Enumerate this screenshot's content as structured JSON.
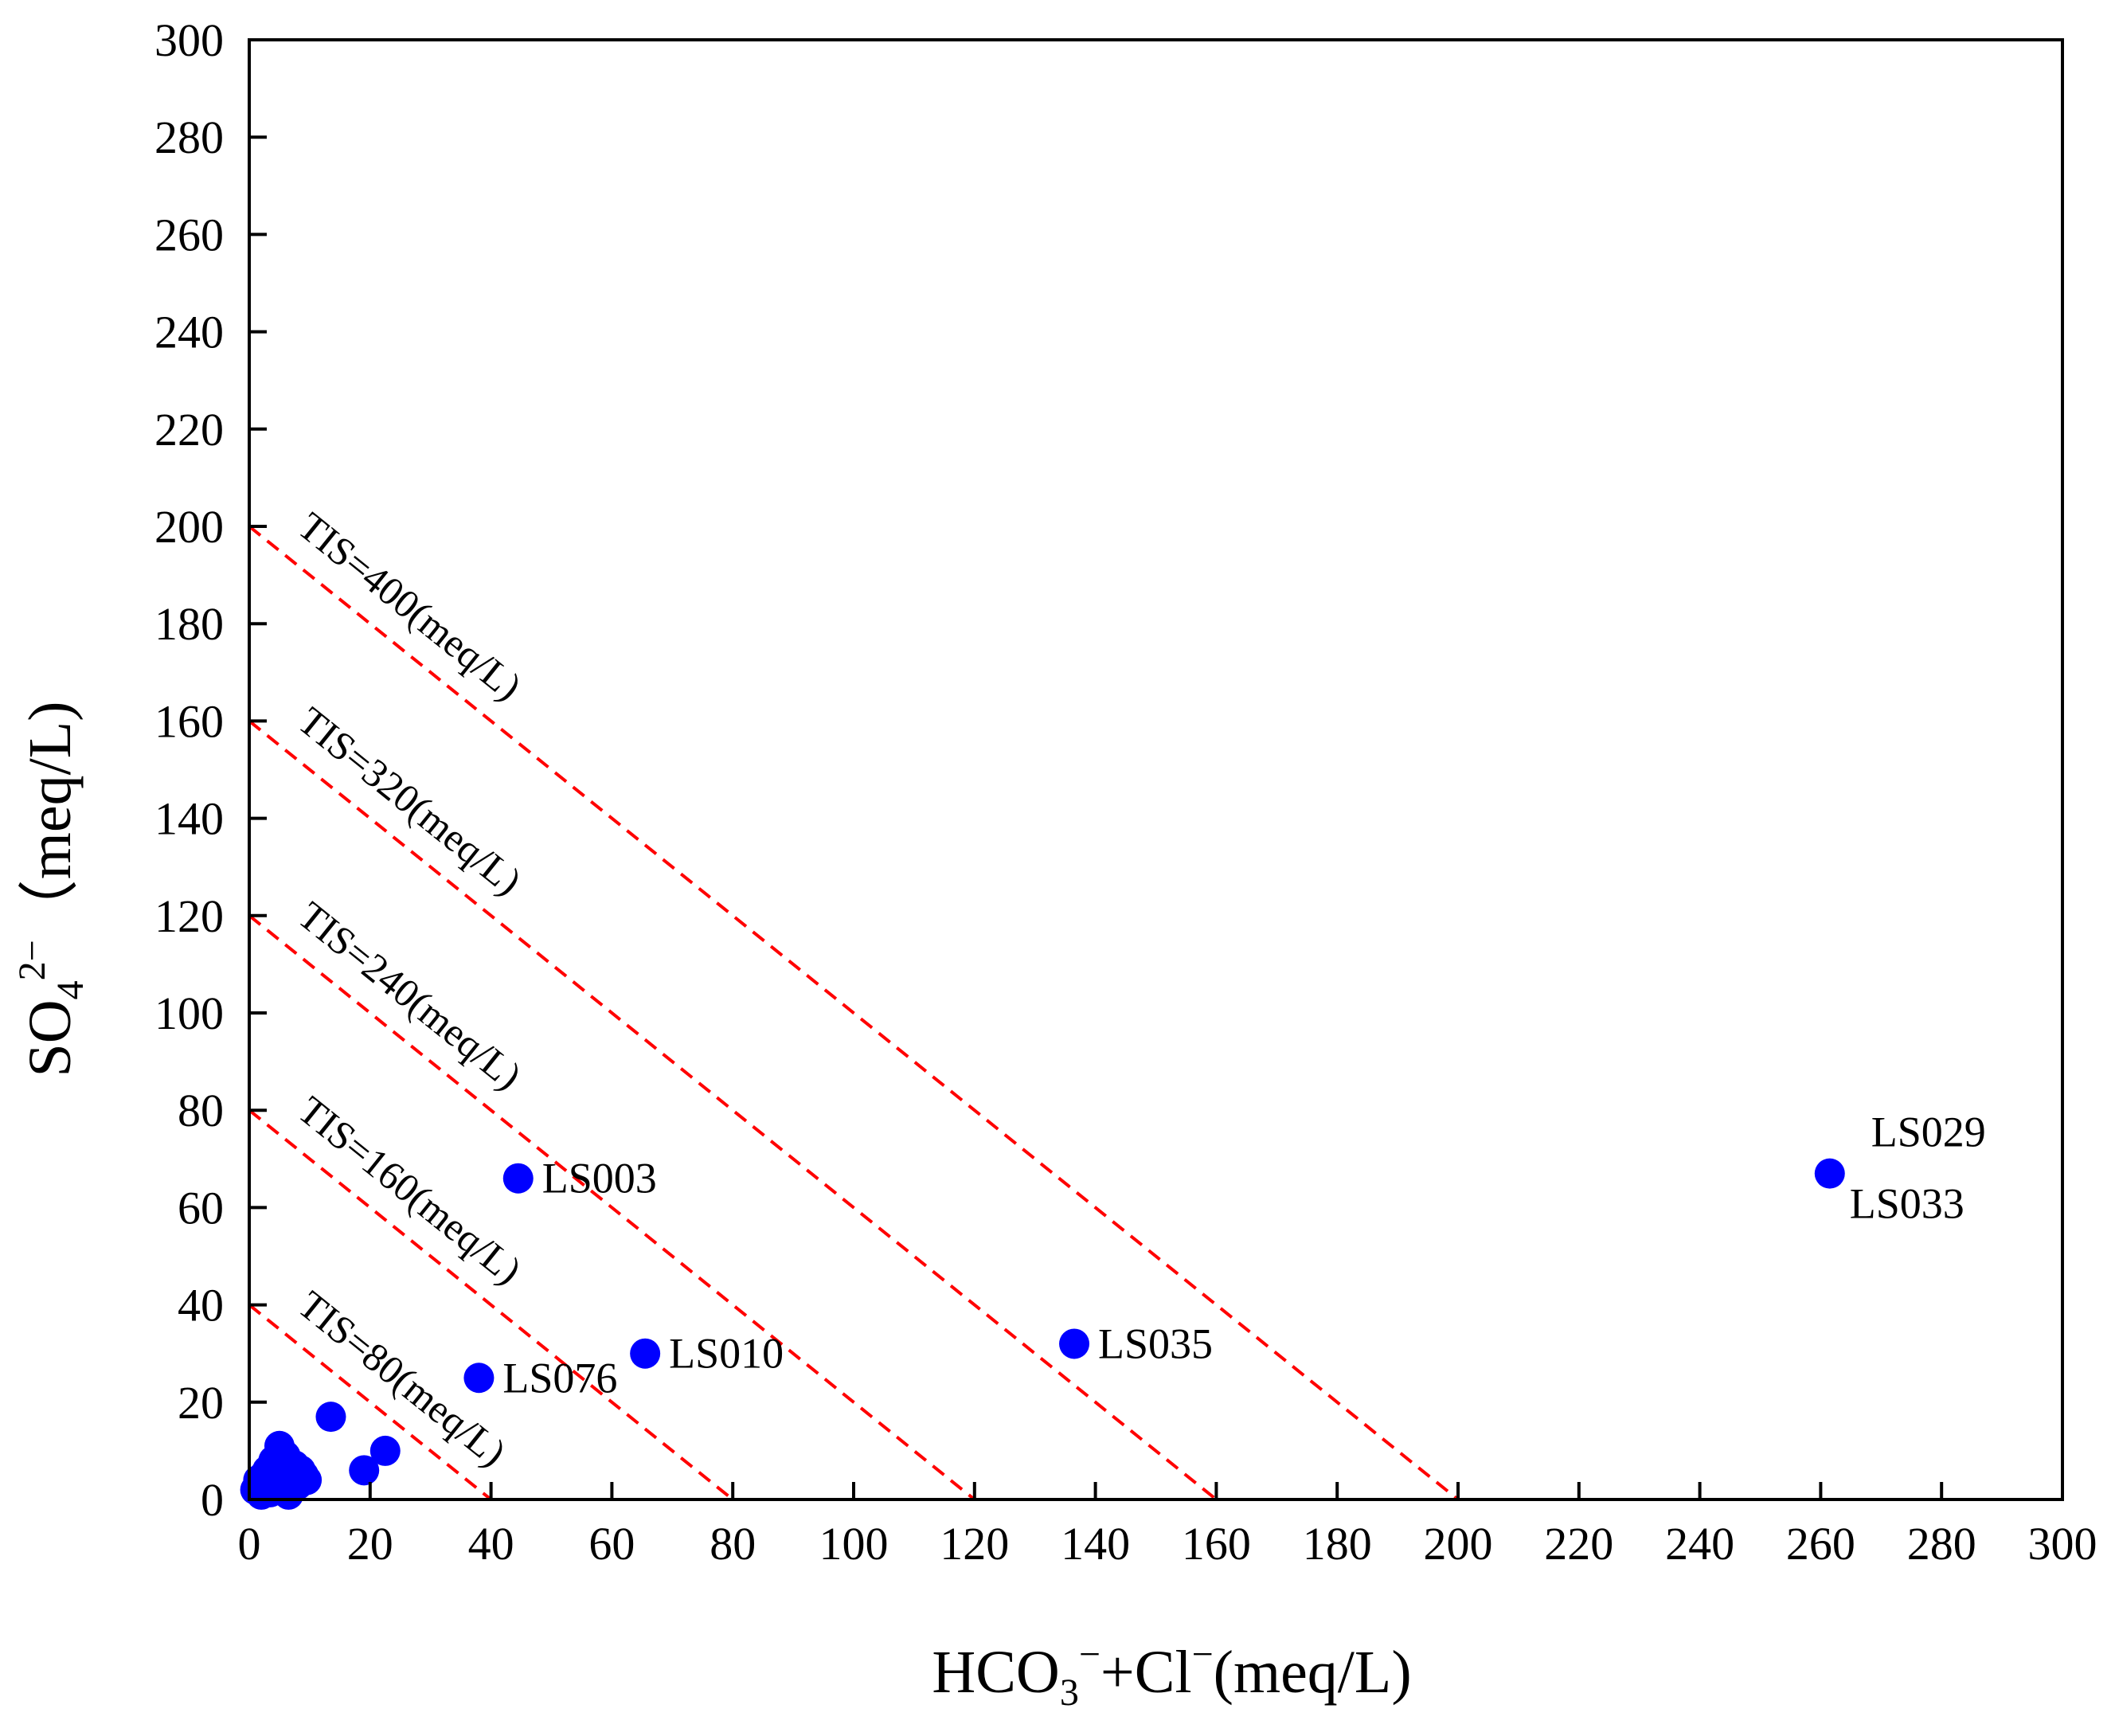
{
  "chart_data": {
    "type": "scatter",
    "title": "",
    "xlabel": {
      "base": "HCO",
      "sub": "3",
      "sup": "−",
      "mid": "+Cl",
      "sup2": "−",
      "unit": "(meq/L)"
    },
    "ylabel": {
      "base": "SO",
      "sub": "4",
      "sup": "2−",
      "unit": "（meq/L)"
    },
    "xlim": [
      0,
      300
    ],
    "ylim": [
      0,
      300
    ],
    "xticks": [
      0,
      20,
      40,
      60,
      80,
      100,
      120,
      140,
      160,
      180,
      200,
      220,
      240,
      260,
      280,
      300
    ],
    "yticks": [
      0,
      20,
      40,
      60,
      80,
      100,
      120,
      140,
      160,
      180,
      200,
      220,
      240,
      260,
      280,
      300
    ],
    "point_color": "#0000ff",
    "line_color": "#ff0000",
    "points": [
      {
        "x": 1,
        "y": 2
      },
      {
        "x": 1.5,
        "y": 4
      },
      {
        "x": 2,
        "y": 1
      },
      {
        "x": 2.5,
        "y": 5
      },
      {
        "x": 3,
        "y": 3
      },
      {
        "x": 3,
        "y": 6
      },
      {
        "x": 3.5,
        "y": 1.5
      },
      {
        "x": 4,
        "y": 4
      },
      {
        "x": 4,
        "y": 8
      },
      {
        "x": 4.5,
        "y": 2
      },
      {
        "x": 5,
        "y": 11
      },
      {
        "x": 5,
        "y": 5
      },
      {
        "x": 5.5,
        "y": 3
      },
      {
        "x": 6,
        "y": 9
      },
      {
        "x": 6,
        "y": 6
      },
      {
        "x": 6.5,
        "y": 1
      },
      {
        "x": 7,
        "y": 4
      },
      {
        "x": 7.5,
        "y": 7
      },
      {
        "x": 8,
        "y": 3
      },
      {
        "x": 8.5,
        "y": 6
      },
      {
        "x": 9,
        "y": 5
      },
      {
        "x": 9.5,
        "y": 4
      },
      {
        "x": 13.5,
        "y": 17
      },
      {
        "x": 19,
        "y": 6
      },
      {
        "x": 22.5,
        "y": 10
      },
      {
        "x": 38,
        "y": 25,
        "label": "LS076"
      },
      {
        "x": 44.5,
        "y": 66,
        "label": "LS003"
      },
      {
        "x": 65.5,
        "y": 30,
        "label": "LS010"
      },
      {
        "x": 136.5,
        "y": 32,
        "label": "LS035"
      },
      {
        "x": 261.5,
        "y": 67,
        "labels": [
          "LS029",
          "LS033"
        ]
      }
    ],
    "tis_lines": [
      {
        "tis": 80,
        "label": "TIS=80(meq/L)"
      },
      {
        "tis": 160,
        "label": "TIS=160(meq/L)"
      },
      {
        "tis": 240,
        "label": "TIS=240(meq/L)"
      },
      {
        "tis": 320,
        "label": "TIS=320(meq/L)"
      },
      {
        "tis": 400,
        "label": "TIS=400(meq/L)"
      }
    ]
  }
}
